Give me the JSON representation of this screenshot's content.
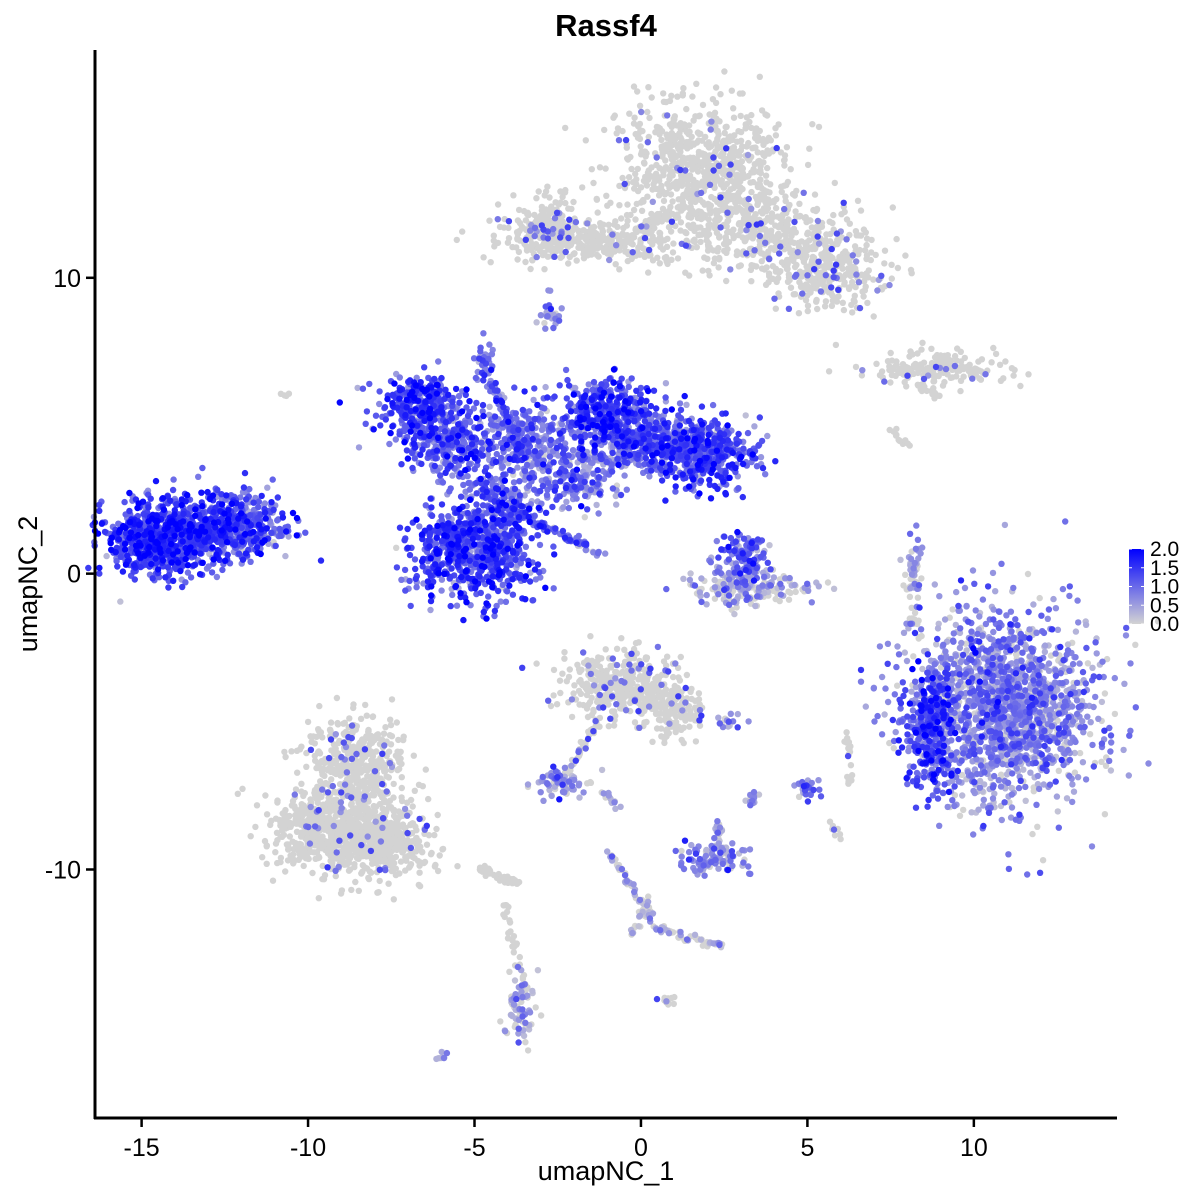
{
  "chart_data": {
    "type": "scatter",
    "title": "Rassf4",
    "xlabel": "umapNC_1",
    "ylabel": "umapNC_2",
    "xlim": [
      -16.4,
      14.3
    ],
    "ylim": [
      -18.4,
      17.7
    ],
    "x_ticks": [
      -15,
      -10,
      -5,
      0,
      5,
      10
    ],
    "x_tick_labels": [
      "-15",
      "-10",
      "-5",
      "0",
      "5",
      "10"
    ],
    "y_ticks": [
      -10,
      0,
      10
    ],
    "y_tick_labels": [
      "-10",
      "0",
      "10"
    ],
    "grid": false,
    "legend_position": "right",
    "color_scale": {
      "low_color": "#d3d3d3",
      "high_color": "#0000ff",
      "min": 0.0,
      "max": 2.0,
      "tick_values": [
        0.0,
        0.5,
        1.0,
        1.5,
        2.0
      ],
      "tick_labels": [
        "0.0",
        "0.5",
        "1.0",
        "1.5",
        "2.0"
      ]
    },
    "clusters": [
      {
        "cx": 1.8,
        "cy": 13.8,
        "sx": 1.3,
        "sy": 1.1,
        "n": 700,
        "expr": 0.05
      },
      {
        "cx": 3.5,
        "cy": 11.7,
        "sx": 1.3,
        "sy": 0.7,
        "n": 400,
        "expr": 0.07
      },
      {
        "cx": 5.5,
        "cy": 10.2,
        "sx": 0.9,
        "sy": 0.7,
        "n": 300,
        "expr": 0.08
      },
      {
        "cx": -1.5,
        "cy": 11.2,
        "sx": 1.4,
        "sy": 0.35,
        "n": 300,
        "expr": 0.05
      },
      {
        "cx": -2.8,
        "cy": 11.8,
        "sx": 0.6,
        "sy": 0.6,
        "n": 150,
        "expr": 0.08
      },
      {
        "cx": 9.0,
        "cy": 6.9,
        "sx": 1.1,
        "sy": 0.3,
        "n": 150,
        "expr": 0.05
      },
      {
        "cx": -2.7,
        "cy": 8.8,
        "sx": 0.15,
        "sy": 0.3,
        "n": 25,
        "expr": 0.7
      },
      {
        "cx": -14.5,
        "cy": 1.2,
        "sx": 0.8,
        "sy": 0.65,
        "n": 600,
        "expr": 1.3
      },
      {
        "cx": -12.9,
        "cy": 1.6,
        "sx": 1.0,
        "sy": 0.6,
        "n": 500,
        "expr": 1.25
      },
      {
        "cx": -11.8,
        "cy": 1.7,
        "sx": 0.4,
        "sy": 0.5,
        "n": 150,
        "expr": 0.9
      },
      {
        "cx": -6.6,
        "cy": 5.6,
        "sx": 0.6,
        "sy": 0.5,
        "n": 350,
        "expr": 1.2
      },
      {
        "cx": -5.6,
        "cy": 4.3,
        "sx": 0.7,
        "sy": 0.6,
        "n": 300,
        "expr": 1.1
      },
      {
        "cx": -5.0,
        "cy": 0.8,
        "sx": 1.0,
        "sy": 0.8,
        "n": 700,
        "expr": 1.25
      },
      {
        "cx": -4.2,
        "cy": 2.4,
        "sx": 0.6,
        "sy": 0.6,
        "n": 200,
        "expr": 1.0
      },
      {
        "cx": -3.5,
        "cy": 4.5,
        "sx": 0.6,
        "sy": 0.7,
        "n": 250,
        "expr": 0.9
      },
      {
        "cx": -2.0,
        "cy": 3.2,
        "sx": 0.7,
        "sy": 0.5,
        "n": 200,
        "expr": 0.75
      },
      {
        "cx": -0.9,
        "cy": 5.4,
        "sx": 0.7,
        "sy": 0.6,
        "n": 400,
        "expr": 1.3
      },
      {
        "cx": 0.3,
        "cy": 4.4,
        "sx": 0.8,
        "sy": 0.5,
        "n": 300,
        "expr": 1.0
      },
      {
        "cx": 1.8,
        "cy": 4.1,
        "sx": 0.8,
        "sy": 0.6,
        "n": 450,
        "expr": 1.2
      },
      {
        "cx": -4.7,
        "cy": 7.2,
        "sx": 0.15,
        "sy": 0.3,
        "n": 30,
        "expr": 0.9
      },
      {
        "cx": 3.1,
        "cy": 0.6,
        "sx": 0.35,
        "sy": 0.5,
        "n": 130,
        "expr": 1.0
      },
      {
        "cx": 3.2,
        "cy": -0.5,
        "sx": 0.9,
        "sy": 0.35,
        "n": 180,
        "expr": 0.25
      },
      {
        "cx": 8.2,
        "cy": 0.0,
        "sx": 0.12,
        "sy": 0.7,
        "n": 50,
        "expr": 0.35
      },
      {
        "cx": 10.9,
        "cy": -4.5,
        "sx": 1.35,
        "sy": 1.6,
        "n": 1700,
        "expr": 0.6
      },
      {
        "cx": 8.7,
        "cy": -5.2,
        "sx": 0.35,
        "sy": 1.0,
        "n": 300,
        "expr": 1.3
      },
      {
        "cx": -0.6,
        "cy": -3.8,
        "sx": 0.9,
        "sy": 0.6,
        "n": 350,
        "expr": 0.1
      },
      {
        "cx": 0.9,
        "cy": -4.6,
        "sx": 0.5,
        "sy": 0.5,
        "n": 150,
        "expr": 0.1
      },
      {
        "cx": -2.4,
        "cy": -7.0,
        "sx": 0.4,
        "sy": 0.25,
        "n": 70,
        "expr": 0.5
      },
      {
        "cx": 2.2,
        "cy": -9.6,
        "sx": 0.5,
        "sy": 0.3,
        "n": 90,
        "expr": 0.6
      },
      {
        "cx": 5.0,
        "cy": -7.3,
        "sx": 0.18,
        "sy": 0.25,
        "n": 25,
        "expr": 0.8
      },
      {
        "cx": 2.6,
        "cy": -5.0,
        "sx": 0.25,
        "sy": 0.12,
        "n": 15,
        "expr": 0.7
      },
      {
        "cx": -8.5,
        "cy": -6.4,
        "sx": 0.7,
        "sy": 0.8,
        "n": 450,
        "expr": 0.05
      },
      {
        "cx": -9.4,
        "cy": -8.7,
        "sx": 0.9,
        "sy": 0.7,
        "n": 500,
        "expr": 0.05
      },
      {
        "cx": -7.7,
        "cy": -9.0,
        "sx": 0.8,
        "sy": 0.6,
        "n": 400,
        "expr": 0.05
      },
      {
        "cx": -3.6,
        "cy": -14.6,
        "sx": 0.2,
        "sy": 0.6,
        "n": 70,
        "expr": 0.2
      },
      {
        "cx": -6.0,
        "cy": -16.3,
        "sx": 0.12,
        "sy": 0.12,
        "n": 8,
        "expr": 0.4
      },
      {
        "cx": -10.6,
        "cy": 6.1,
        "sx": 0.08,
        "sy": 0.08,
        "n": 4,
        "expr": 0.2
      },
      {
        "cx": 0.6,
        "cy": -14.4,
        "sx": 0.1,
        "sy": 0.1,
        "n": 6,
        "expr": 0.1
      }
    ],
    "paths": [
      {
        "from": [
          -4.6,
          6.8
        ],
        "to": [
          -3.6,
          4.0
        ],
        "n": 60,
        "expr": 1.0
      },
      {
        "from": [
          -3.6,
          2.0
        ],
        "to": [
          -1.2,
          0.7
        ],
        "n": 70,
        "expr": 1.0
      },
      {
        "from": [
          -2.1,
          4.1
        ],
        "to": [
          -0.5,
          3.7
        ],
        "n": 60,
        "expr": 0.5
      },
      {
        "from": [
          -3.4,
          11.8
        ],
        "to": [
          -2.0,
          11.2
        ],
        "n": 60,
        "expr": 0.1
      },
      {
        "from": [
          -0.2,
          11.5
        ],
        "to": [
          0.8,
          12.2
        ],
        "n": 50,
        "expr": 0.05
      },
      {
        "from": [
          7.4,
          6.9
        ],
        "to": [
          9.8,
          7.0
        ],
        "n": 50,
        "expr": 0.05
      },
      {
        "from": [
          8.3,
          6.4
        ],
        "to": [
          9.0,
          6.0
        ],
        "n": 20,
        "expr": 0.05
      },
      {
        "from": [
          7.6,
          4.9
        ],
        "to": [
          8.0,
          4.3
        ],
        "n": 12,
        "expr": 0.05
      },
      {
        "from": [
          -1.3,
          -5.0
        ],
        "to": [
          -2.3,
          -6.9
        ],
        "n": 40,
        "expr": 0.1
      },
      {
        "from": [
          -1.2,
          -7.2
        ],
        "to": [
          -0.7,
          -7.9
        ],
        "n": 15,
        "expr": 0.2
      },
      {
        "from": [
          2.3,
          -8.4
        ],
        "to": [
          2.4,
          -9.6
        ],
        "n": 30,
        "expr": 0.4
      },
      {
        "from": [
          3.3,
          -8.0
        ],
        "to": [
          3.4,
          -7.4
        ],
        "n": 12,
        "expr": 0.3
      },
      {
        "from": [
          -0.9,
          -9.5
        ],
        "to": [
          0.5,
          -12.0
        ],
        "n": 50,
        "expr": 0.15
      },
      {
        "from": [
          0.5,
          -12.0
        ],
        "to": [
          2.4,
          -12.6
        ],
        "n": 50,
        "expr": 0.15
      },
      {
        "from": [
          0.2,
          -11.0
        ],
        "to": [
          -0.3,
          -12.3
        ],
        "n": 20,
        "expr": 0.2
      },
      {
        "from": [
          -4.8,
          -10.0
        ],
        "to": [
          -3.7,
          -10.5
        ],
        "n": 40,
        "expr": 0.05
      },
      {
        "from": [
          -4.1,
          -11.2
        ],
        "to": [
          -3.5,
          -14.0
        ],
        "n": 30,
        "expr": 0.05
      },
      {
        "from": [
          6.2,
          -5.1
        ],
        "to": [
          6.3,
          -7.2
        ],
        "n": 20,
        "expr": 0.05
      },
      {
        "from": [
          -11.3,
          1.3
        ],
        "to": [
          -10.6,
          1.4
        ],
        "n": 15,
        "expr": 0.4
      },
      {
        "from": [
          8.0,
          -1.2
        ],
        "to": [
          8.5,
          -2.2
        ],
        "n": 10,
        "expr": 0.1
      },
      {
        "from": [
          5.5,
          -8.0
        ],
        "to": [
          6.0,
          -9.0
        ],
        "n": 8,
        "expr": 0.05
      },
      {
        "from": [
          1.1,
          -14.3
        ],
        "to": [
          0.6,
          -14.5
        ],
        "n": 6,
        "expr": 0.1
      },
      {
        "from": [
          -4.1,
          -15.6
        ],
        "to": [
          -3.3,
          -15.2
        ],
        "n": 10,
        "expr": 0.4
      }
    ]
  }
}
